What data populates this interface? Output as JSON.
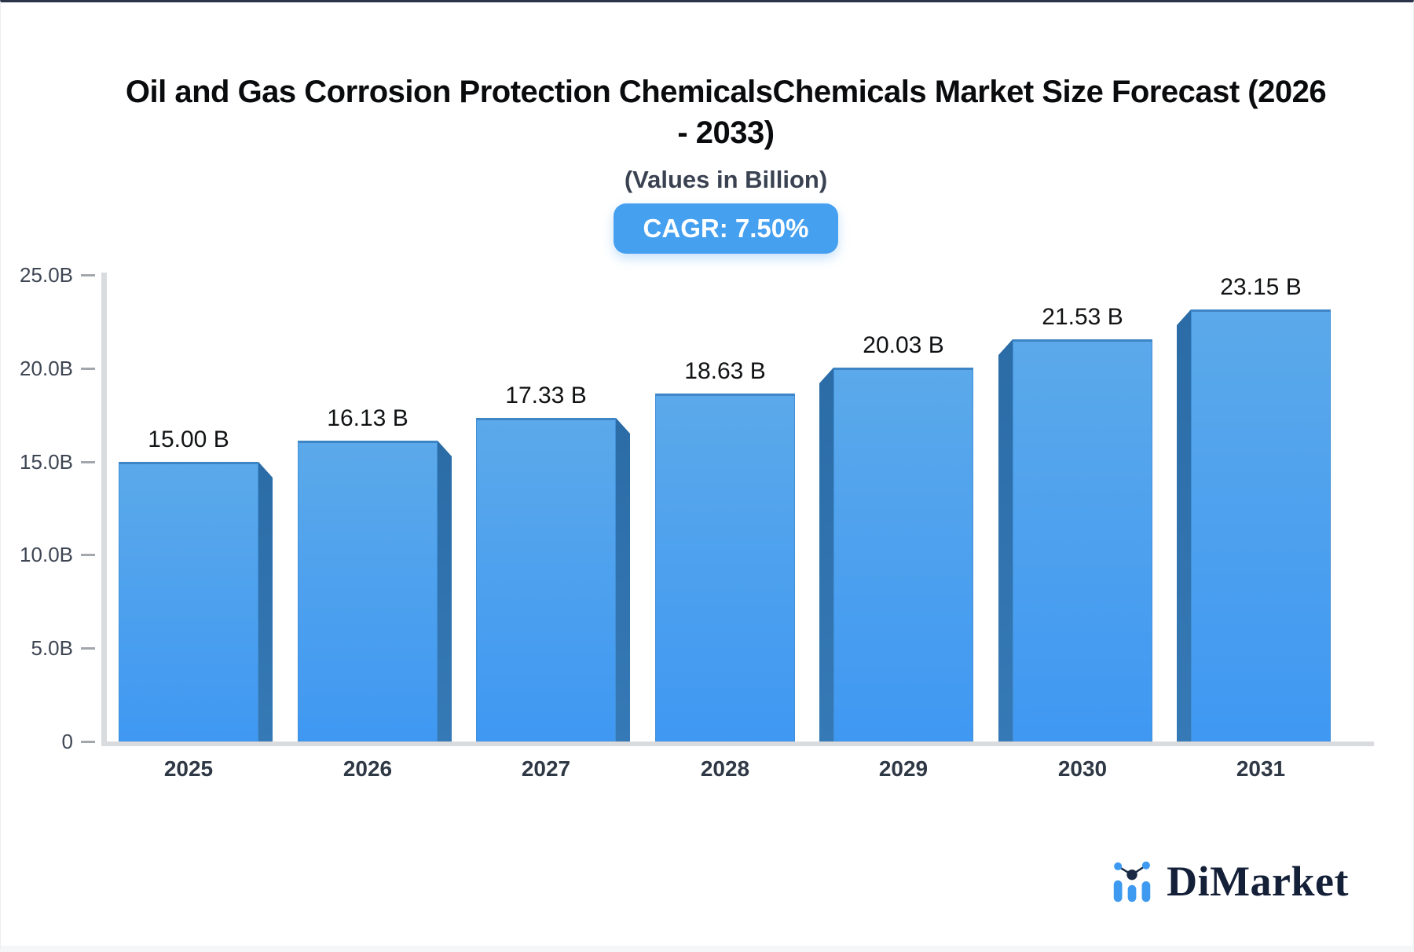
{
  "header": {
    "title_line1": "Oil and Gas Corrosion Protection ChemicalsChemicals Market Size Forecast (2026",
    "title_line2": "- 2033)",
    "subtitle": "(Values in Billion)",
    "cagr_badge": "CAGR: 7.50%"
  },
  "chart_data": {
    "type": "bar",
    "title": "Oil and Gas Corrosion Protection ChemicalsChemicals Market Size Forecast (2026 - 2033)",
    "subtitle": "(Values in Billion)",
    "annotation": "CAGR: 7.50%",
    "categories": [
      "2025",
      "2026",
      "2027",
      "2028",
      "2029",
      "2030",
      "2031"
    ],
    "values": [
      15.0,
      16.13,
      17.33,
      18.63,
      20.03,
      21.53,
      23.15
    ],
    "value_labels": [
      "15.00 B",
      "16.13 B",
      "17.33 B",
      "18.63 B",
      "20.03 B",
      "21.53 B",
      "23.15 B"
    ],
    "unit": "B",
    "xlabel": "",
    "ylabel": "",
    "ylim": [
      0,
      25
    ],
    "y_ticks": [
      {
        "value": 25,
        "label": "25.0B"
      },
      {
        "value": 20,
        "label": "20.0B"
      },
      {
        "value": 15,
        "label": "15.0B"
      },
      {
        "value": 10,
        "label": "10.0B"
      },
      {
        "value": 5,
        "label": "5.0B"
      },
      {
        "value": 0,
        "label": "0"
      }
    ],
    "grid": false,
    "legend": false,
    "bar_style": "3d-extruded",
    "colors": {
      "bar_face_top": "#5BA9EA",
      "bar_face_bottom": "#3F98F2",
      "bar_side": "#2F73B0",
      "bar_border": "#3E85C5",
      "axis": "#D9DBDE",
      "tick_text": "#3E4653",
      "category_text": "#2F3845",
      "value_text": "#101214",
      "badge_bg": "#45A0F0",
      "badge_text": "#FFFFFF",
      "logo_blue": "#3E9AF0",
      "logo_navy": "#141F38"
    }
  },
  "logo": {
    "text": "DiMarket"
  }
}
